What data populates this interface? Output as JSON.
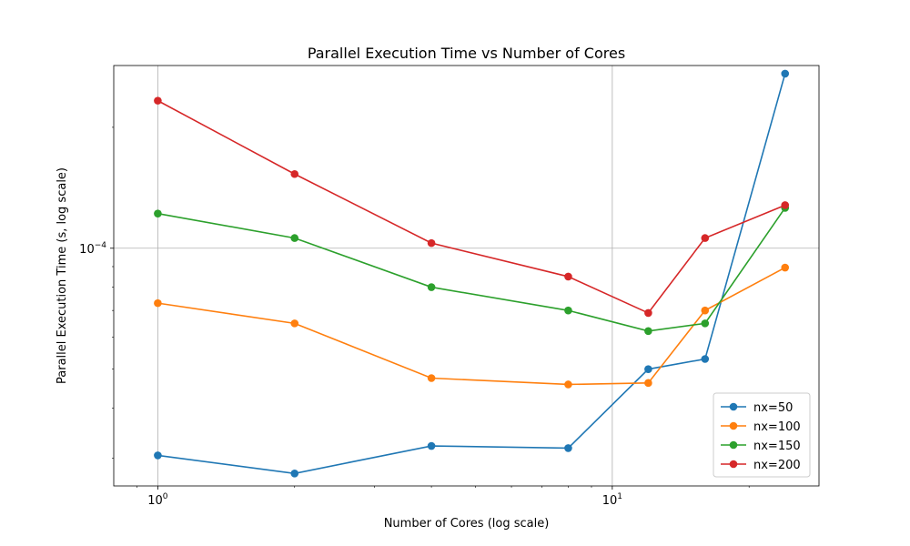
{
  "chart_data": {
    "type": "line",
    "title": "Parallel Execution Time vs Number of Cores",
    "xlabel": "Number of Cores (log scale)",
    "ylabel": "Parallel Execution Time (s, log scale)",
    "xscale": "log",
    "yscale": "log",
    "xlim": [
      0.8,
      28.5
    ],
    "ylim": [
      2.56e-05,
      0.000285
    ],
    "x_ticks": [
      {
        "value": 1,
        "base": "10",
        "exp": "0"
      },
      {
        "value": 10,
        "base": "10",
        "exp": "1"
      }
    ],
    "y_ticks": [
      {
        "value": 0.0001,
        "base": "10",
        "exp": "−4"
      }
    ],
    "grid": true,
    "legend_position": "lower right",
    "x": [
      1,
      2,
      4,
      8,
      12,
      16,
      24
    ],
    "series": [
      {
        "name": "nx=50",
        "color": "#1f77b4",
        "values": [
          3.05e-05,
          2.75e-05,
          3.22e-05,
          3.18e-05,
          5e-05,
          5.3e-05,
          0.000272
        ]
      },
      {
        "name": "nx=100",
        "color": "#ff7f0e",
        "values": [
          7.3e-05,
          6.5e-05,
          4.75e-05,
          4.58e-05,
          4.62e-05,
          7e-05,
          8.95e-05
        ]
      },
      {
        "name": "nx=150",
        "color": "#2ca02c",
        "values": [
          0.000122,
          0.000106,
          8e-05,
          7e-05,
          6.22e-05,
          6.5e-05,
          0.000126
        ]
      },
      {
        "name": "nx=200",
        "color": "#d62728",
        "values": [
          0.000233,
          0.000153,
          0.000103,
          8.5e-05,
          6.9e-05,
          0.000106,
          0.000128
        ]
      }
    ]
  }
}
